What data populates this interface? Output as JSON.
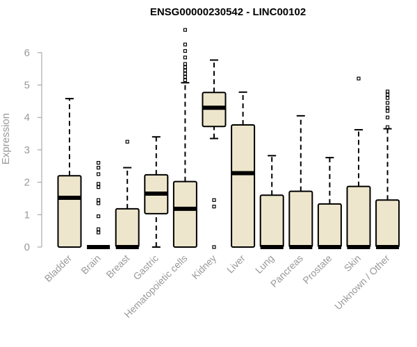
{
  "chart_data": {
    "type": "box",
    "title": "ENSG00000230542 - LINC00102",
    "ylabel": "Expression",
    "xlabel": "",
    "ylim": [
      0,
      7
    ],
    "yticks": [
      0,
      1,
      2,
      3,
      4,
      5,
      6
    ],
    "box_fill": "#EDE6CC",
    "categories": [
      "Bladder",
      "Brain",
      "Breast",
      "Gastric",
      "Hematopoietic cells",
      "Kidney",
      "Liver",
      "Lung",
      "Pancreas",
      "Prostate",
      "Skin",
      "Unknown / Other"
    ],
    "boxes": [
      {
        "min": 0,
        "q1": 0,
        "median": 1.52,
        "q3": 2.2,
        "max": 4.58,
        "outliers": []
      },
      {
        "min": 0,
        "q1": 0,
        "median": 0,
        "q3": 0,
        "max": 0,
        "outliers": [
          0.45,
          0.55,
          0.95,
          1.35,
          1.45,
          1.85,
          1.95,
          2.25,
          2.45,
          2.6
        ]
      },
      {
        "min": 0,
        "q1": 0,
        "median": 0,
        "q3": 1.18,
        "max": 2.45,
        "outliers": [
          3.25
        ]
      },
      {
        "min": 0,
        "q1": 1.03,
        "median": 1.65,
        "q3": 2.23,
        "max": 3.4,
        "outliers": []
      },
      {
        "min": 0,
        "q1": 0,
        "median": 1.18,
        "q3": 2.02,
        "max": 5.07,
        "outliers": [
          5.15,
          5.25,
          5.35,
          5.45,
          5.55,
          5.65,
          5.85,
          6.05,
          6.25,
          6.7
        ]
      },
      {
        "min": 3.35,
        "q1": 3.72,
        "median": 4.3,
        "q3": 4.77,
        "max": 5.77,
        "outliers": [
          0,
          1.25,
          1.45
        ]
      },
      {
        "min": 0,
        "q1": 0,
        "median": 2.28,
        "q3": 3.77,
        "max": 4.78,
        "outliers": []
      },
      {
        "min": 0,
        "q1": 0,
        "median": 0,
        "q3": 1.6,
        "max": 2.82,
        "outliers": []
      },
      {
        "min": 0,
        "q1": 0,
        "median": 0,
        "q3": 1.72,
        "max": 4.05,
        "outliers": []
      },
      {
        "min": 0,
        "q1": 0,
        "median": 0,
        "q3": 1.33,
        "max": 2.76,
        "outliers": []
      },
      {
        "min": 0,
        "q1": 0,
        "median": 0,
        "q3": 1.87,
        "max": 3.62,
        "outliers": [
          5.2
        ]
      },
      {
        "min": 0,
        "q1": 0,
        "median": 0,
        "q3": 1.45,
        "max": 3.65,
        "outliers": [
          3.7,
          4.0,
          4.2,
          4.3,
          4.45,
          4.6,
          4.7,
          4.8
        ]
      }
    ]
  }
}
